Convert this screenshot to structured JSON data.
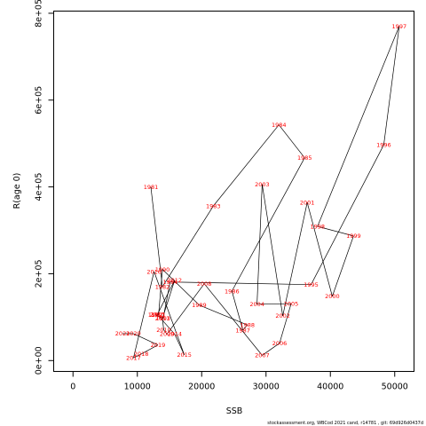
{
  "chart_data": {
    "type": "scatter",
    "xlabel": "SSB",
    "ylabel": "R(age 0)",
    "xlim": [
      -3000,
      53000
    ],
    "ylim": [
      -25000,
      805000
    ],
    "x_ticks": [
      0,
      10000,
      20000,
      30000,
      40000,
      50000
    ],
    "x_tick_labels": [
      "0",
      "10000",
      "20000",
      "30000",
      "40000",
      "50000"
    ],
    "y_ticks": [
      0,
      200000,
      400000,
      600000,
      800000
    ],
    "y_tick_labels": [
      "0e+00",
      "2e+05",
      "4e+05",
      "6e+05",
      "8e+05"
    ],
    "point_color": "#ff0000",
    "line_color": "#000000",
    "connect_in_year_order": true,
    "points": [
      {
        "label": "1981",
        "x": 12100,
        "y": 400000
      },
      {
        "label": "1982",
        "x": 13900,
        "y": 170000
      },
      {
        "label": "1983",
        "x": 21800,
        "y": 356000
      },
      {
        "label": "1984",
        "x": 32000,
        "y": 543000
      },
      {
        "label": "1985",
        "x": 36000,
        "y": 467000
      },
      {
        "label": "1986",
        "x": 24700,
        "y": 160000
      },
      {
        "label": "1987",
        "x": 26400,
        "y": 70000
      },
      {
        "label": "1988",
        "x": 27100,
        "y": 82000
      },
      {
        "label": "1989",
        "x": 19600,
        "y": 128000
      },
      {
        "label": "1990",
        "x": 13900,
        "y": 210000
      },
      {
        "label": "1991",
        "x": 13300,
        "y": 105000
      },
      {
        "label": "1992",
        "x": 12800,
        "y": 105000
      },
      {
        "label": "1993",
        "x": 14000,
        "y": 97000
      },
      {
        "label": "1994",
        "x": 15100,
        "y": 181000
      },
      {
        "label": "1995",
        "x": 37000,
        "y": 175000
      },
      {
        "label": "1996",
        "x": 48300,
        "y": 497000
      },
      {
        "label": "1997",
        "x": 50700,
        "y": 770000
      },
      {
        "label": "1998",
        "x": 38000,
        "y": 309000
      },
      {
        "label": "1999",
        "x": 43600,
        "y": 287000
      },
      {
        "label": "2000",
        "x": 40300,
        "y": 148000
      },
      {
        "label": "2001",
        "x": 36400,
        "y": 364000
      },
      {
        "label": "2002",
        "x": 32600,
        "y": 103000
      },
      {
        "label": "2003",
        "x": 29400,
        "y": 406000
      },
      {
        "label": "2004",
        "x": 28600,
        "y": 130000
      },
      {
        "label": "2005",
        "x": 33900,
        "y": 131000
      },
      {
        "label": "2006",
        "x": 32100,
        "y": 40000
      },
      {
        "label": "2007",
        "x": 29400,
        "y": 12000
      },
      {
        "label": "2008",
        "x": 20400,
        "y": 177000
      },
      {
        "label": "2009",
        "x": 14600,
        "y": 61000
      },
      {
        "label": "2010",
        "x": 14100,
        "y": 71000
      },
      {
        "label": "2011",
        "x": 13900,
        "y": 97000
      },
      {
        "label": "2012",
        "x": 15800,
        "y": 185000
      },
      {
        "label": "2013",
        "x": 13100,
        "y": 106000
      },
      {
        "label": "2014",
        "x": 15800,
        "y": 61000
      },
      {
        "label": "2015",
        "x": 17300,
        "y": 13000
      },
      {
        "label": "2016",
        "x": 12600,
        "y": 205000
      },
      {
        "label": "2017",
        "x": 9400,
        "y": 6000
      },
      {
        "label": "2018",
        "x": 10600,
        "y": 15000
      },
      {
        "label": "2019",
        "x": 13200,
        "y": 36000
      },
      {
        "label": "2020",
        "x": 9400,
        "y": 62000
      },
      {
        "label": "2021",
        "x": 7700,
        "y": 62000
      }
    ]
  },
  "footer": {
    "text": "stockassessment.org,  WBCod  2021  cand,  r14781  ,  git:  69d926d0437d"
  }
}
